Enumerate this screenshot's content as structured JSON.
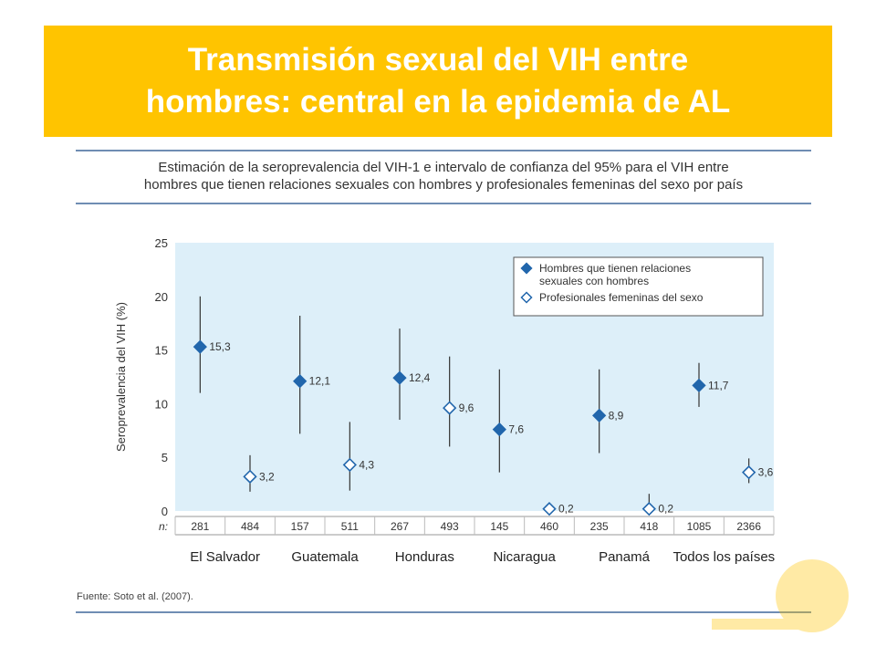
{
  "slide": {
    "title_line1": "Transmisión sexual del VIH entre",
    "title_line2": "hombres:  central en la epidemia de AL"
  },
  "figure": {
    "caption_line1": "Estimación de la seroprevalencia del VIH-1 e intervalo de confianza del 95% para el VIH entre",
    "caption_line2": "hombres que tienen relaciones sexuales con hombres y profesionales femeninas del sexo por país",
    "source": "Fuente: Soto et al. (2007)."
  },
  "colors": {
    "banner": "#FFC400",
    "plot_bg": "#DDEFF9",
    "marker": "#2166AC",
    "rule": "#6F8DB3"
  },
  "chart_data": {
    "type": "scatter",
    "ylabel": "Seroprevalencia del VIH (%)",
    "ylim": [
      0,
      25
    ],
    "yticks": [
      "0",
      "5",
      "10",
      "15",
      "20",
      "25"
    ],
    "n_label": "n:",
    "legend_position": "top-right",
    "grid": false,
    "categories": [
      "El Salvador",
      "Guatemala",
      "Honduras",
      "Nicaragua",
      "Panamá",
      "Todos los países"
    ],
    "series": [
      {
        "name": "Hombres que tienen relaciones sexuales con hombres",
        "name_lines": [
          "Hombres que tienen relaciones",
          "sexuales con hombres"
        ],
        "marker": "filled-diamond",
        "values": [
          15.3,
          12.1,
          12.4,
          7.6,
          8.9,
          11.7
        ],
        "labels": [
          "15,3",
          "12,1",
          "12,4",
          "7,6",
          "8,9",
          "11,7"
        ],
        "ci_low": [
          11.0,
          7.2,
          8.5,
          3.6,
          5.4,
          9.7
        ],
        "ci_high": [
          20.0,
          18.2,
          17.0,
          13.2,
          13.2,
          13.8
        ],
        "n": [
          "281",
          "157",
          "267",
          "145",
          "235",
          "1085"
        ]
      },
      {
        "name": "Profesionales femeninas del sexo",
        "name_lines": [
          "Profesionales femeninas del sexo"
        ],
        "marker": "open-diamond",
        "values": [
          3.2,
          4.3,
          9.6,
          0.2,
          0.2,
          3.6
        ],
        "labels": [
          "3,2",
          "4,3",
          "9,6",
          "0,2",
          "0,2",
          "3,6"
        ],
        "ci_low": [
          1.8,
          1.9,
          6.0,
          0.0,
          0.0,
          2.6
        ],
        "ci_high": [
          5.2,
          8.3,
          14.4,
          0.0,
          1.6,
          4.9
        ],
        "n": [
          "484",
          "511",
          "493",
          "460",
          "418",
          "2366"
        ]
      }
    ]
  }
}
